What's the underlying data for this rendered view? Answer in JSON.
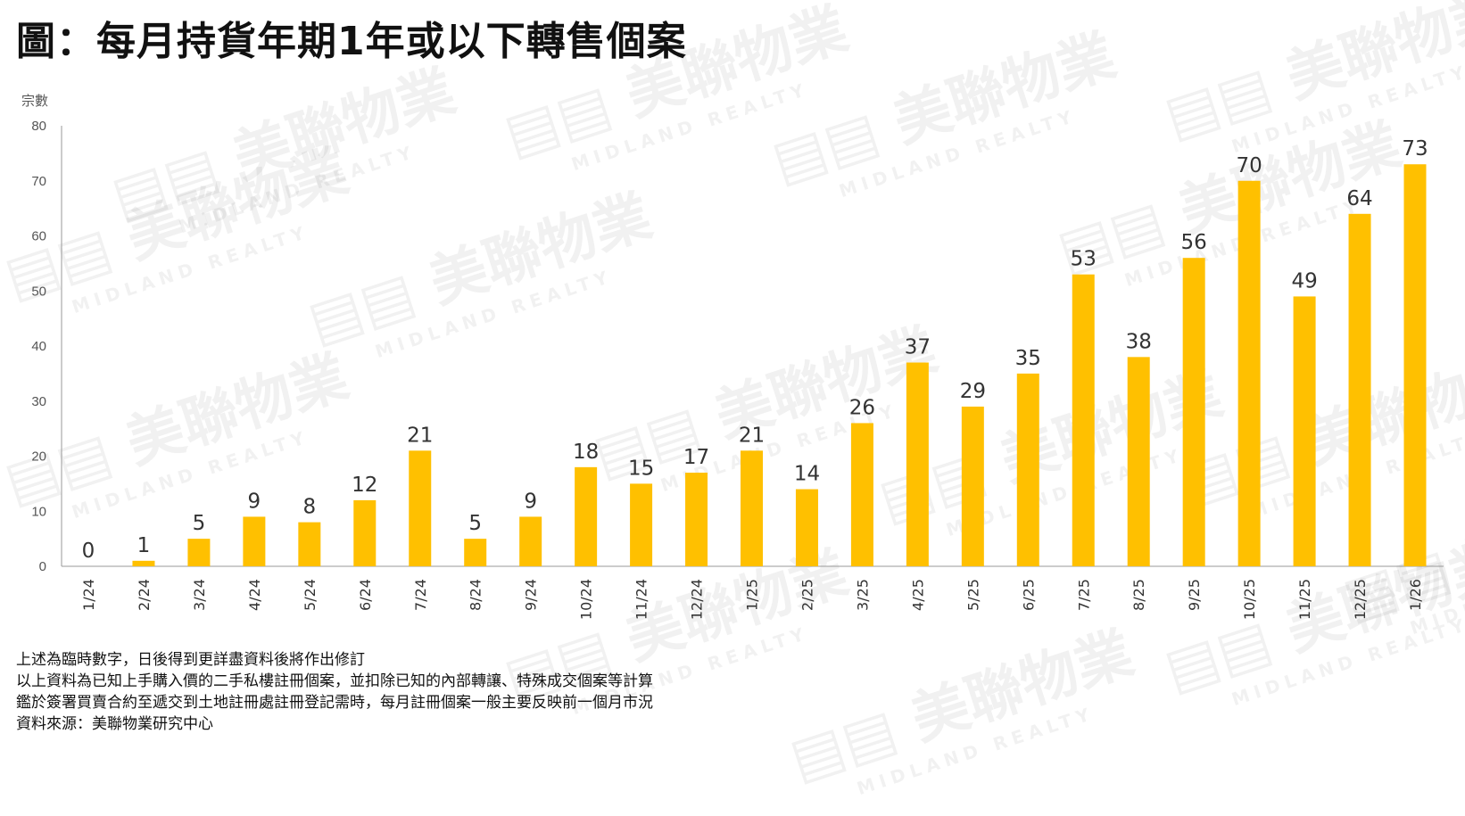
{
  "watermark": {
    "brand_cn": "美聯物業",
    "brand_en": "MIDLAND REALTY"
  },
  "chart_data": {
    "type": "bar",
    "title": "圖：每月持貨年期1年或以下轉售個案",
    "ylabel": "宗數",
    "xlabel": "",
    "ylim": [
      0,
      80
    ],
    "yticks": [
      0,
      10,
      20,
      30,
      40,
      50,
      60,
      70,
      80
    ],
    "grid": false,
    "bar_color": "#FFC000",
    "categories": [
      "1/24",
      "2/24",
      "3/24",
      "4/24",
      "5/24",
      "6/24",
      "7/24",
      "8/24",
      "9/24",
      "10/24",
      "11/24",
      "12/24",
      "1/25",
      "2/25",
      "3/25",
      "4/25",
      "5/25",
      "6/25",
      "7/25",
      "8/25",
      "9/25",
      "10/25",
      "11/25",
      "12/25",
      "1/26"
    ],
    "values": [
      0,
      1,
      5,
      9,
      8,
      12,
      21,
      5,
      9,
      18,
      15,
      17,
      21,
      14,
      26,
      37,
      29,
      35,
      53,
      38,
      56,
      70,
      49,
      64,
      73
    ]
  },
  "notes": [
    "上述為臨時數字，日後得到更詳盡資料後將作出修訂",
    "以上資料為已知上手購入價的二手私樓註冊個案，並扣除已知的內部轉讓、特殊成交個案等計算",
    "鑑於簽署買賣合約至遞交到土地註冊處註冊登記需時，每月註冊個案一般主要反映前一個月市況",
    "資料來源：美聯物業研究中心"
  ]
}
